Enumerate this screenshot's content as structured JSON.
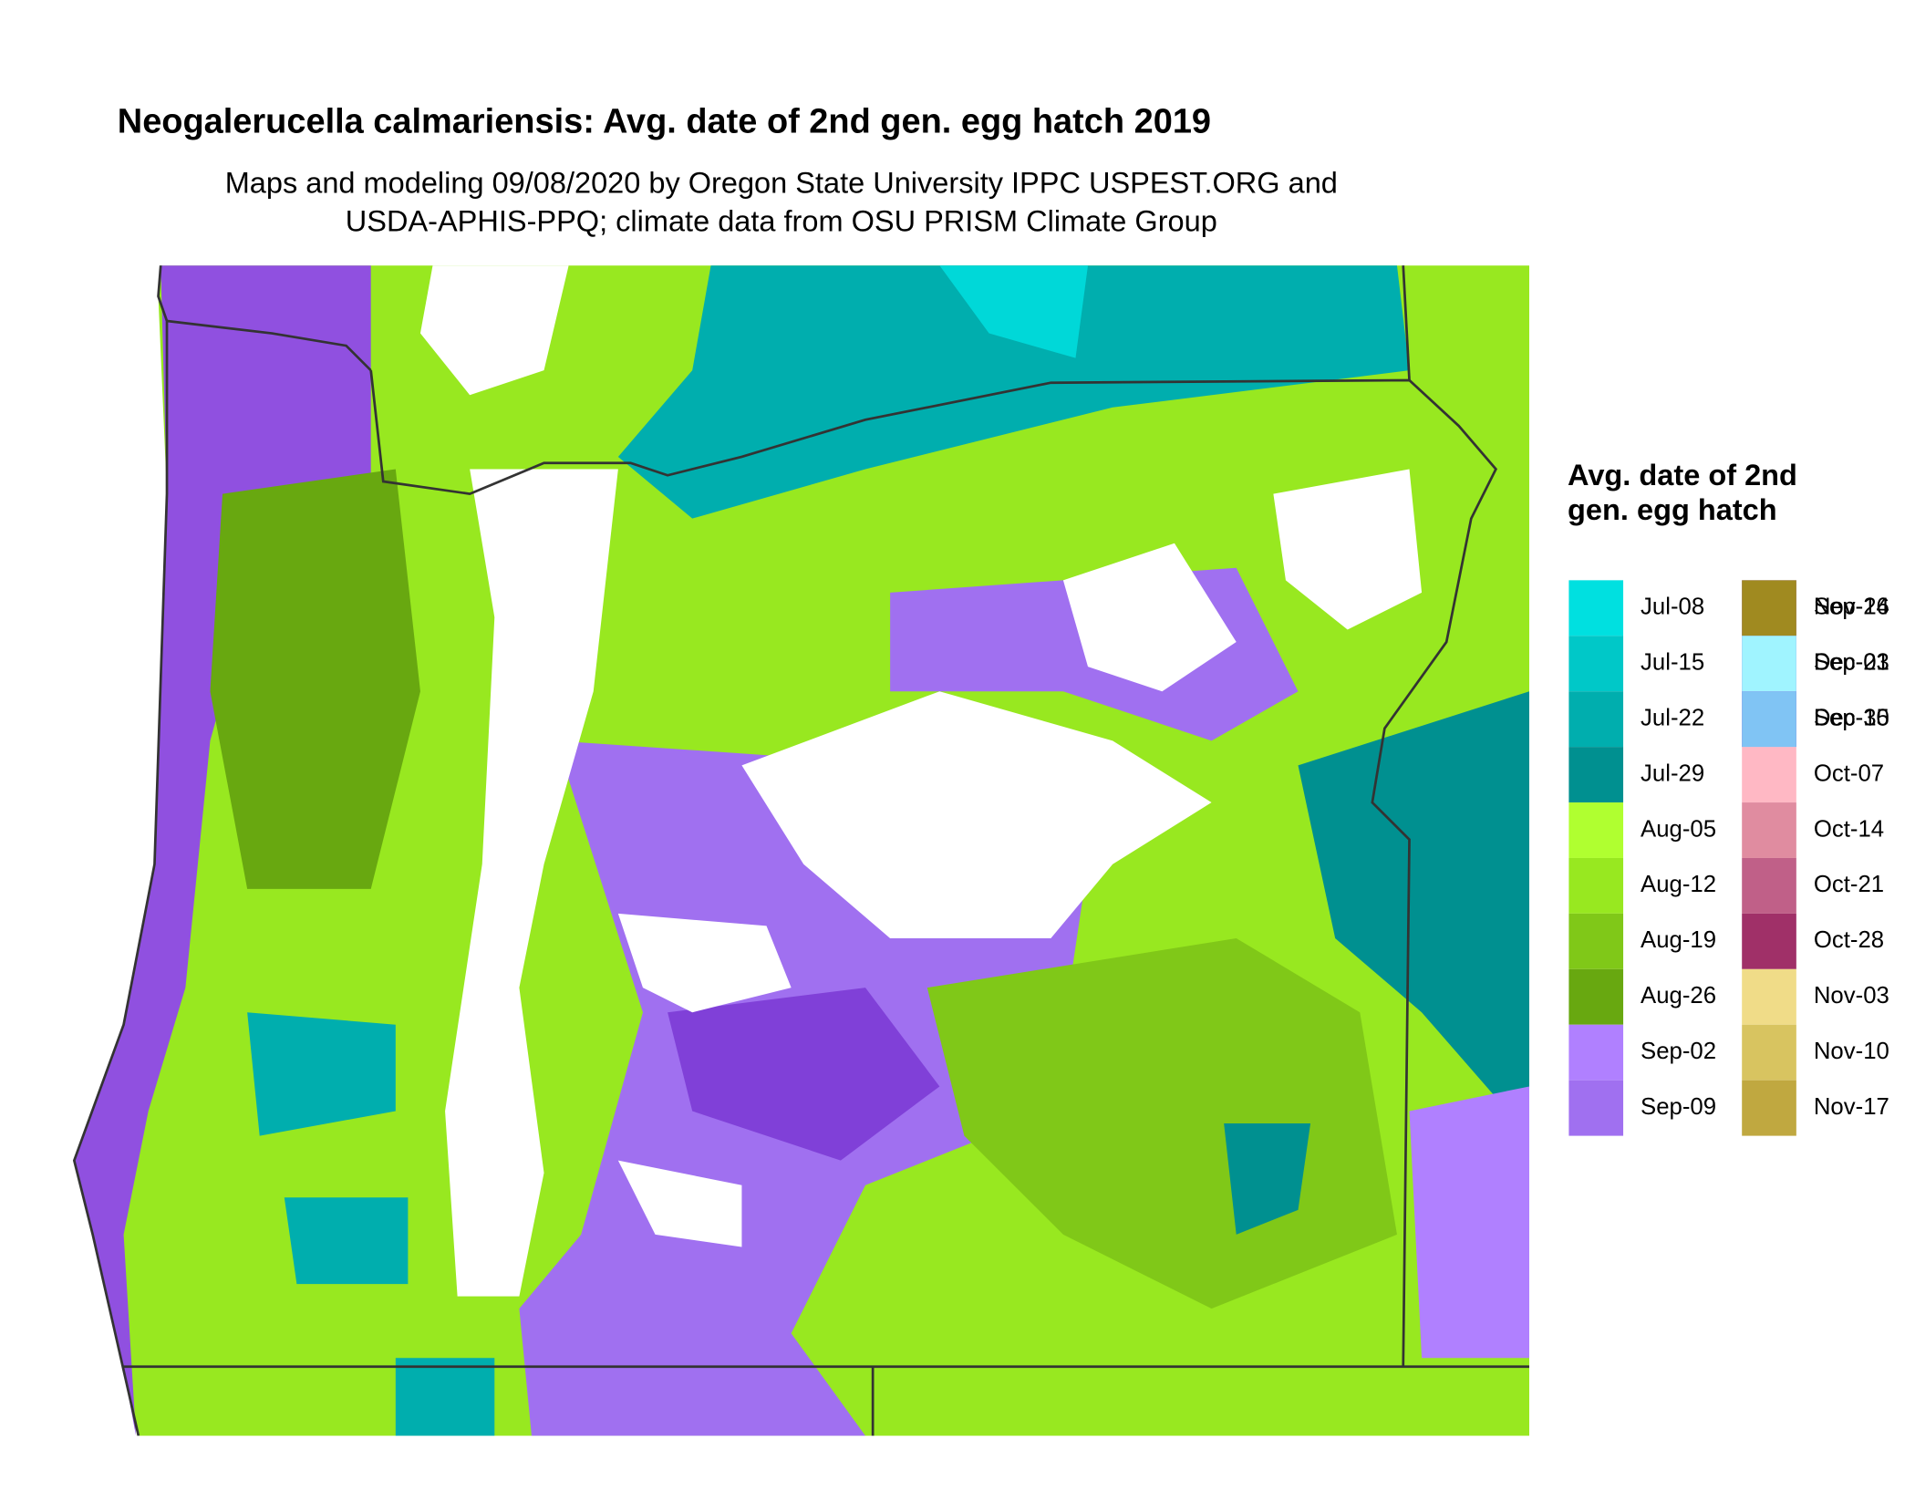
{
  "title": "Neogalerucella calmariensis: Avg. date of 2nd gen. egg hatch 2019",
  "subtitle": [
    "Maps and modeling 09/08/2020 by Oregon State University IPPC USPEST.ORG and",
    "USDA-APHIS-PPQ; climate data from OSU PRISM Climate Group"
  ],
  "legend": {
    "title": "Avg. date of 2nd gen. egg hatch",
    "items": [
      {
        "label": "Jul-08",
        "color": "#00e0e0"
      },
      {
        "label": "Jul-15",
        "color": "#00c8c8"
      },
      {
        "label": "Jul-22",
        "color": "#00aeae"
      },
      {
        "label": "Jul-29",
        "color": "#009090"
      },
      {
        "label": "Aug-05",
        "color": "#b0ff30"
      },
      {
        "label": "Aug-12",
        "color": "#98e820"
      },
      {
        "label": "Aug-19",
        "color": "#80c818"
      },
      {
        "label": "Aug-26",
        "color": "#68a810"
      },
      {
        "label": "Sep-02",
        "color": "#b080ff"
      },
      {
        "label": "Sep-09",
        "color": "#a070f0"
      },
      {
        "label": "Sep-16",
        "color": "#9050e0"
      },
      {
        "label": "Sep-23",
        "color": "#8040d8"
      },
      {
        "label": "Sep-30",
        "color": "#7a2ec8"
      },
      {
        "label": "Oct-07",
        "color": "#ffb8c4"
      },
      {
        "label": "Oct-14",
        "color": "#e08ca0"
      },
      {
        "label": "Oct-21",
        "color": "#c06088"
      },
      {
        "label": "Oct-28",
        "color": "#a03068"
      },
      {
        "label": "Nov-03",
        "color": "#f0dc88"
      },
      {
        "label": "Nov-10",
        "color": "#d8c460"
      },
      {
        "label": "Nov-17",
        "color": "#c0a840"
      },
      {
        "label": "Nov-24",
        "color": "#a08a20"
      },
      {
        "label": "Dec-01",
        "color": "#a0f4ff"
      },
      {
        "label": "Dec-15",
        "color": "#80c4f4"
      }
    ]
  }
}
